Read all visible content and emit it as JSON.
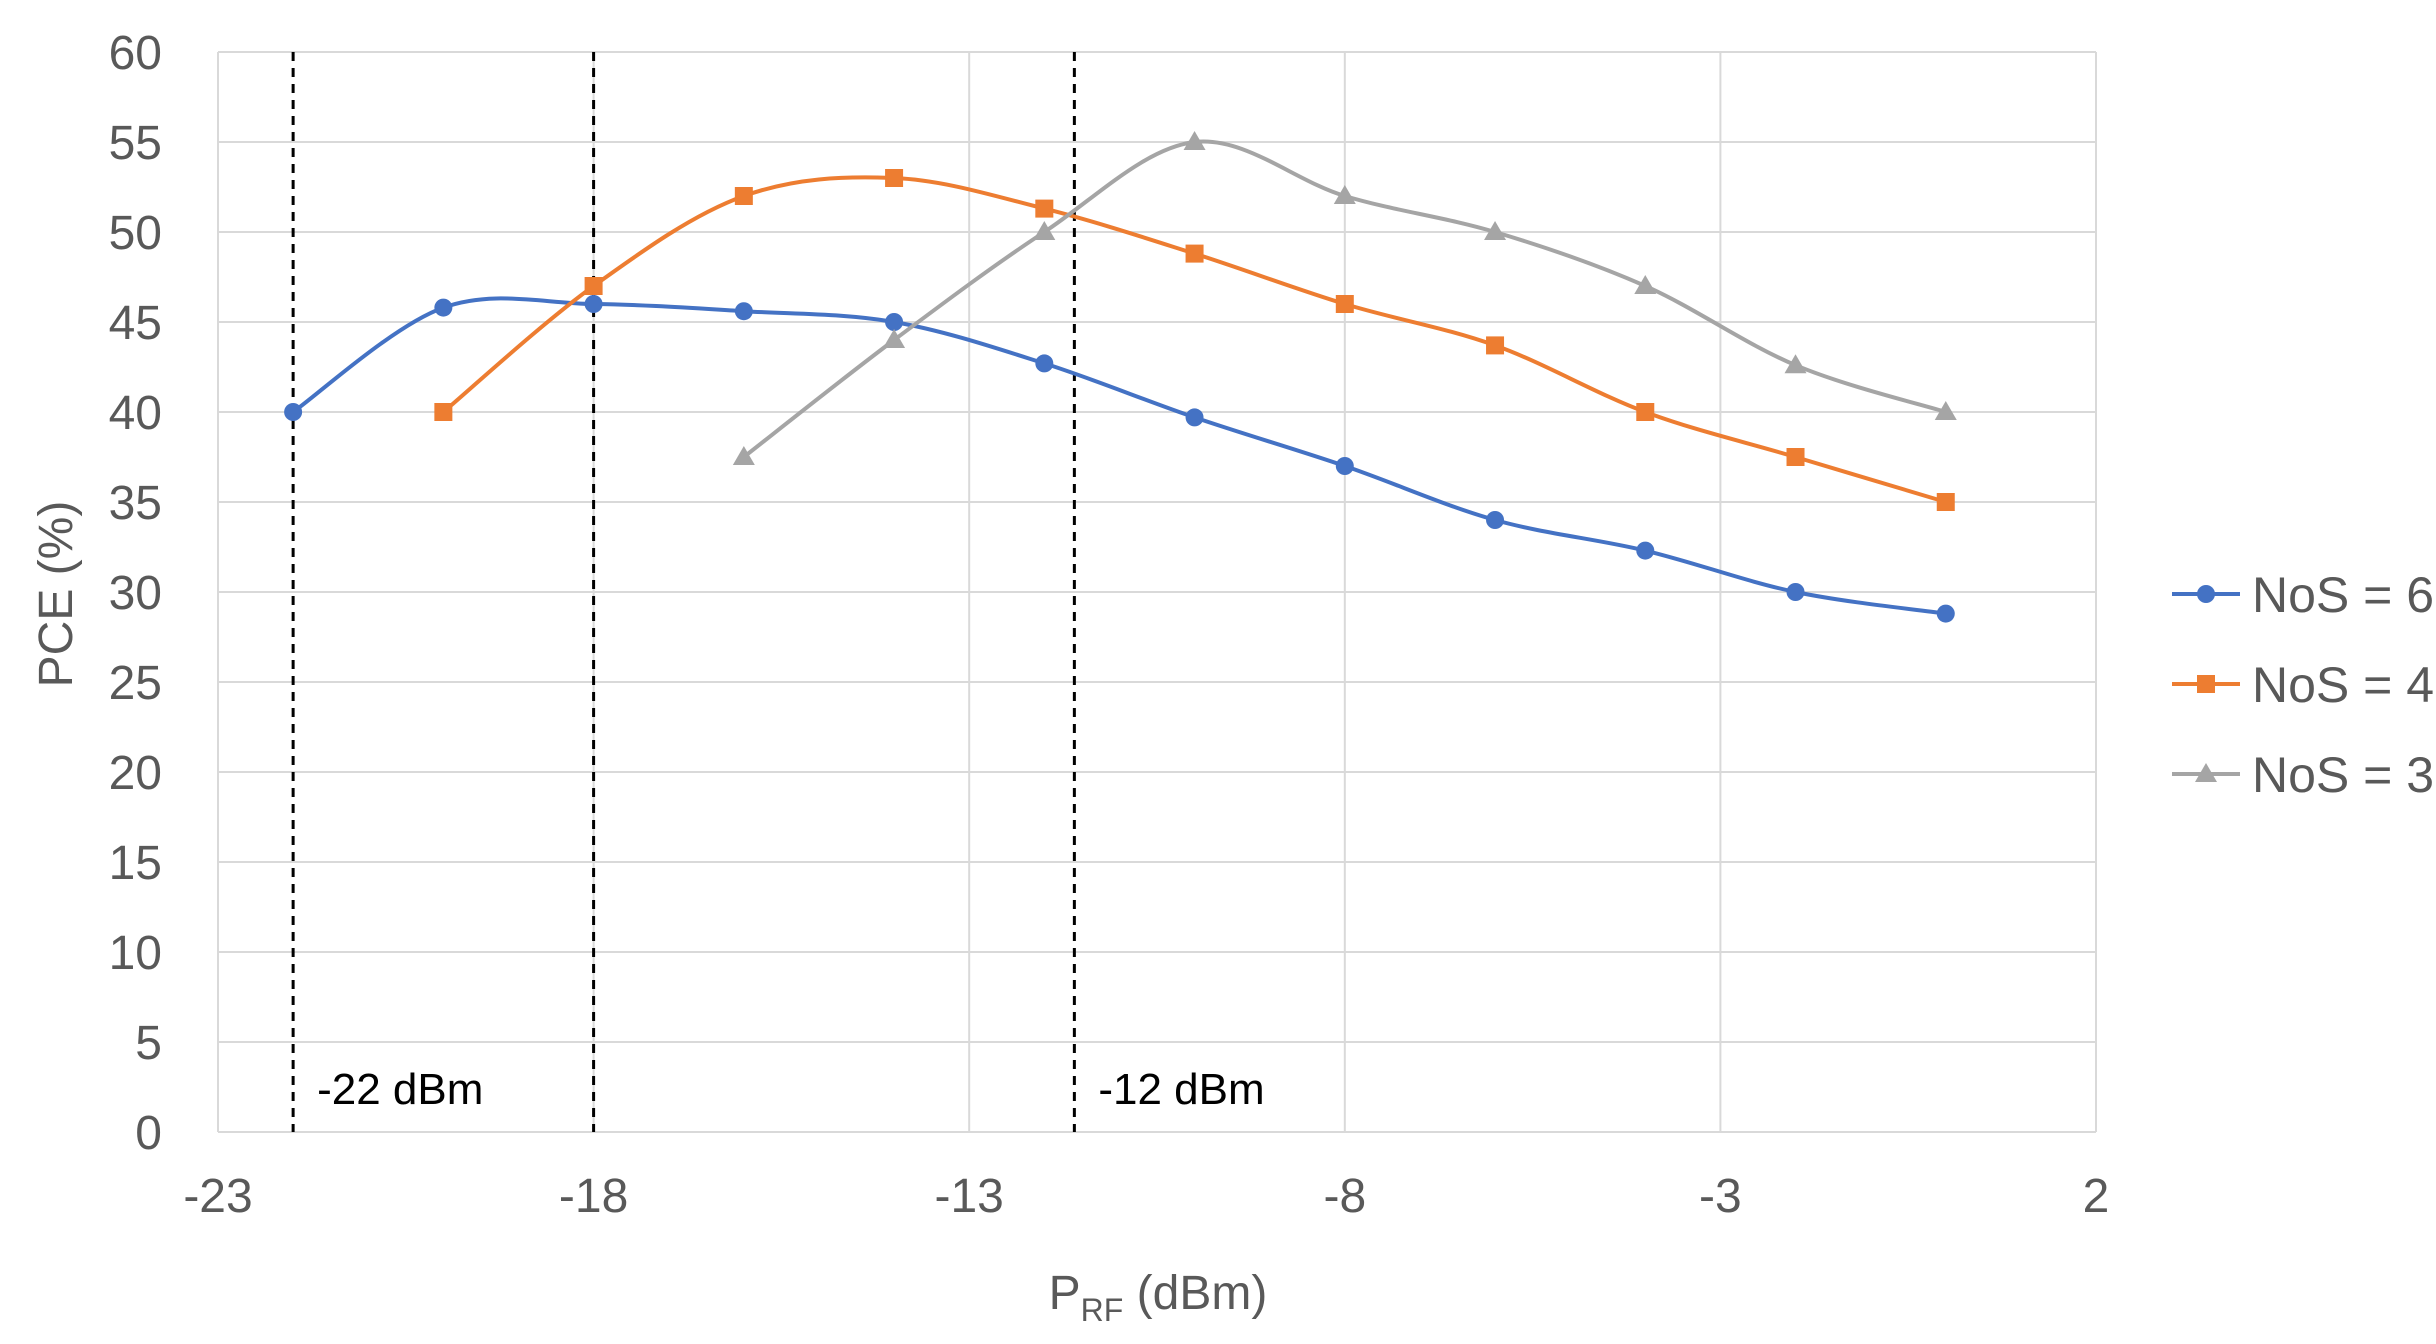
{
  "chart_data": {
    "type": "line",
    "title": "",
    "xlabel_main": "P",
    "xlabel_sub": "RF",
    "xlabel_unit": " (dBm)",
    "ylabel": "PCE (%)",
    "xlim": [
      -23,
      2
    ],
    "ylim": [
      0,
      60
    ],
    "xticks": [
      -23,
      -18,
      -13,
      -8,
      -3,
      2
    ],
    "yticks": [
      0,
      5,
      10,
      15,
      20,
      25,
      30,
      35,
      40,
      45,
      50,
      55,
      60
    ],
    "grid": true,
    "legend_position": "right",
    "series": [
      {
        "name": "NoS = 6",
        "color": "#4472C4",
        "marker": "circle",
        "x": [
          -22,
          -20,
          -18,
          -16,
          -14,
          -12,
          -10,
          -8,
          -6,
          -4,
          -2,
          0
        ],
        "y": [
          40,
          45.8,
          46,
          45.6,
          45,
          42.7,
          39.7,
          37,
          34,
          32.3,
          30,
          28.8
        ]
      },
      {
        "name": "NoS = 4",
        "color": "#ED7D31",
        "marker": "square",
        "x": [
          -20,
          -18,
          -16,
          -14,
          -12,
          -10,
          -8,
          -6,
          -4,
          -2,
          0
        ],
        "y": [
          40,
          47,
          52,
          53,
          51.3,
          48.8,
          46,
          43.7,
          40,
          37.5,
          35
        ]
      },
      {
        "name": "NoS = 3",
        "color": "#A5A5A5",
        "marker": "triangle",
        "x": [
          -16,
          -14,
          -12,
          -10,
          -8,
          -6,
          -4,
          -2,
          0
        ],
        "y": [
          37.5,
          44,
          50,
          55,
          52,
          50,
          47,
          42.6,
          40
        ]
      }
    ],
    "vlines": [
      {
        "x": -22,
        "label": "-22 dBm"
      },
      {
        "x": -18,
        "label": ""
      },
      {
        "x": -11.6,
        "label": "-12 dBm"
      }
    ]
  }
}
